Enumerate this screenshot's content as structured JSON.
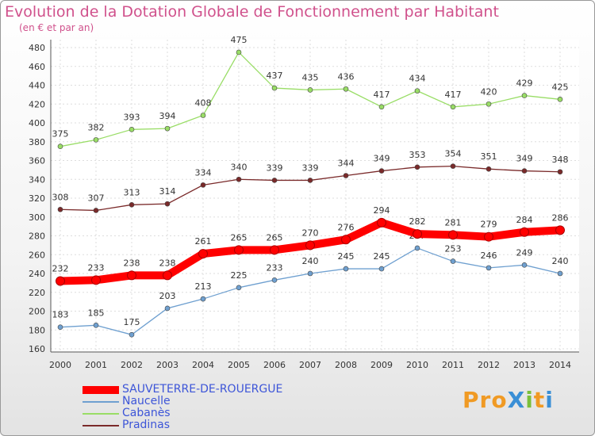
{
  "title": "Evolution de la Dotation Globale de Fonctionnement par Habitant",
  "subtitle": "(en € et par an)",
  "logo_text": "ProXiti",
  "chart_data": {
    "type": "line",
    "title": "Evolution de la Dotation Globale de Fonctionnement par Habitant",
    "subtitle": "(en € et par an)",
    "x": [
      "2000",
      "2001",
      "2002",
      "2003",
      "2004",
      "2005",
      "2006",
      "2007",
      "2008",
      "2009",
      "2010",
      "2011",
      "2012",
      "2013",
      "2014"
    ],
    "ylim": [
      160,
      480
    ],
    "yticks": [
      160,
      180,
      200,
      220,
      240,
      260,
      280,
      300,
      320,
      340,
      360,
      380,
      400,
      420,
      440,
      460,
      480
    ],
    "grid": true,
    "legend_position": "bottom-left",
    "series": [
      {
        "name": "SAUVETERRE-DE-ROUERGUE",
        "color": "#ff0000",
        "values": [
          232,
          233,
          238,
          238,
          261,
          265,
          265,
          270,
          276,
          294,
          282,
          281,
          279,
          284,
          286
        ]
      },
      {
        "name": "Naucelle",
        "color": "#6fa0d0",
        "values": [
          183,
          185,
          175,
          203,
          213,
          225,
          233,
          240,
          245,
          245,
          267,
          253,
          246,
          249,
          240
        ]
      },
      {
        "name": "Cabanès",
        "color": "#99dd66",
        "values": [
          375,
          382,
          393,
          394,
          408,
          475,
          437,
          435,
          436,
          417,
          434,
          417,
          420,
          429,
          425
        ]
      },
      {
        "name": "Pradinas",
        "color": "#7a2a2a",
        "values": [
          308,
          307,
          313,
          314,
          334,
          340,
          339,
          339,
          344,
          349,
          353,
          354,
          351,
          349,
          348
        ]
      }
    ]
  }
}
